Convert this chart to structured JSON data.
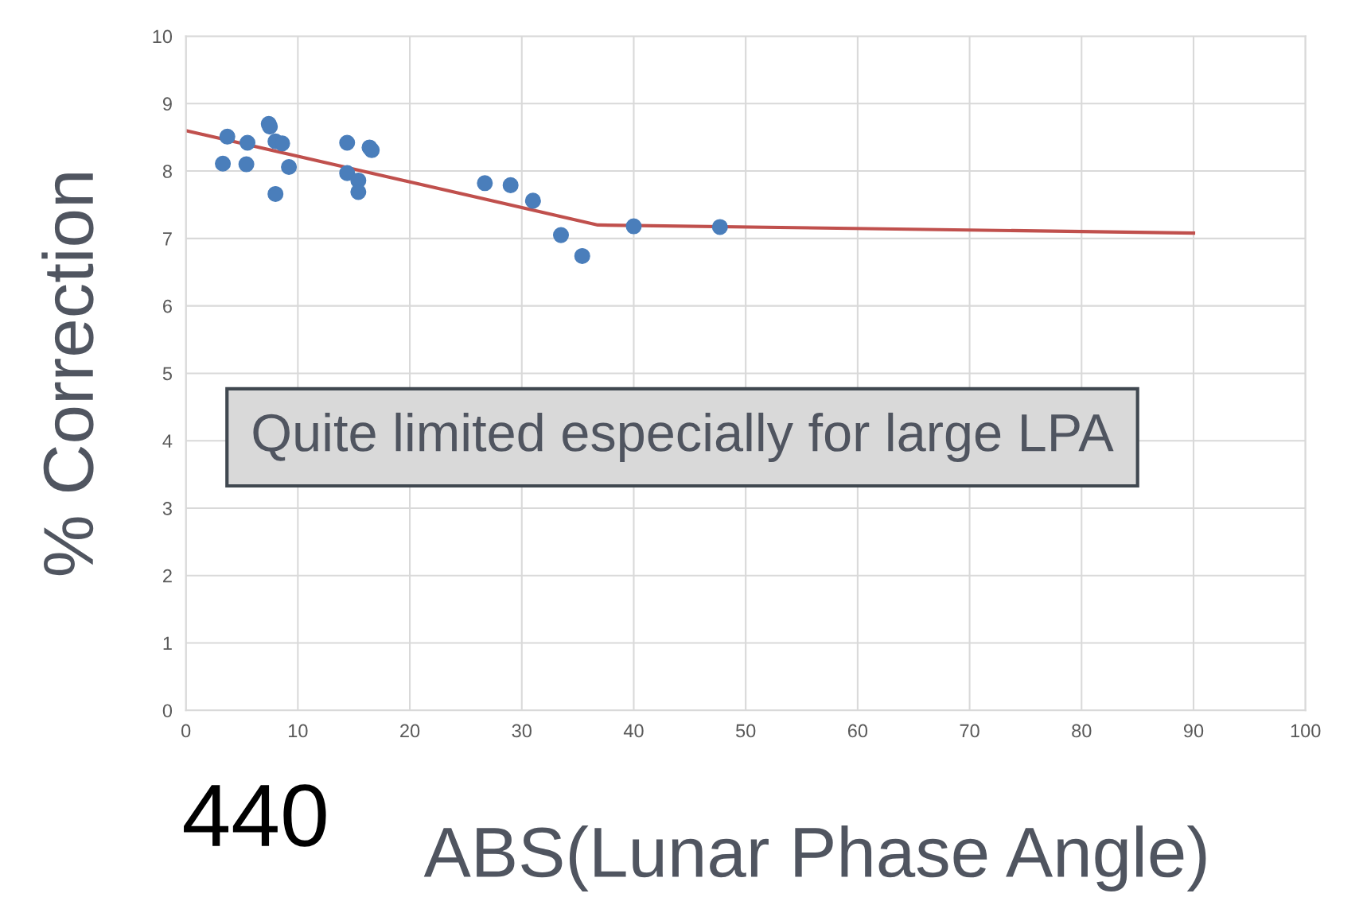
{
  "chart_data": {
    "type": "scatter",
    "xlabel": "ABS(Lunar Phase Angle)",
    "ylabel": "% Correction",
    "annotations": [
      "Quite limited especially for large LPA",
      "440"
    ],
    "series": [
      {
        "color": "#4a7ebb",
        "marker": "circle",
        "x": [
          3.3,
          3.7,
          5.5,
          5.4,
          7.4,
          7.5,
          8.0,
          8.6,
          8.0,
          9.2,
          14.4,
          14.4,
          15.4,
          15.4,
          16.4,
          16.6,
          26.7,
          29.0,
          31.0,
          33.5,
          35.4,
          40.0,
          47.7
        ],
        "values": [
          8.11,
          8.51,
          8.42,
          8.1,
          8.7,
          8.66,
          8.44,
          8.41,
          7.66,
          8.06,
          8.42,
          7.97,
          7.86,
          7.69,
          8.35,
          8.31,
          7.82,
          7.79,
          7.56,
          7.05,
          6.74,
          7.18,
          7.17
        ]
      },
      {
        "type": "line",
        "color": "#c0504d",
        "marker": "none",
        "x": [
          0,
          36.8,
          90
        ],
        "values": [
          8.6,
          7.2,
          7.08
        ]
      }
    ],
    "xlim": [
      0,
      100
    ],
    "xticks": [
      0,
      10,
      20,
      30,
      40,
      50,
      60,
      70,
      80,
      90,
      100
    ],
    "ylim": [
      0,
      10
    ],
    "yticks": [
      0,
      1,
      2,
      3,
      4,
      5,
      6,
      7,
      8,
      9,
      10
    ],
    "grid": true
  }
}
